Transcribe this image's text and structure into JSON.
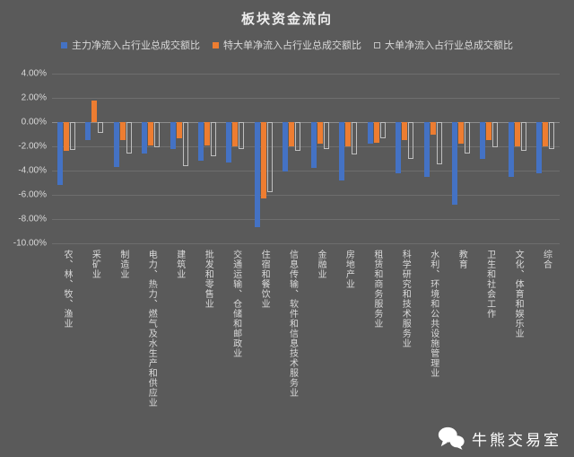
{
  "title": "板块资金流向",
  "watermark": {
    "label": "牛熊交易室",
    "icon": "wechat-icon"
  },
  "colors": {
    "background": "#5A5A5A",
    "text": "#D9D9D9",
    "title": "#ECECEC",
    "gridline": "#6E6E6E",
    "zero_line": "#8C8C8C",
    "series": [
      "#4472C4",
      "#ED7D31",
      "#BFBFBF"
    ]
  },
  "chart_data": {
    "type": "bar",
    "title": "板块资金流向",
    "legend_position": "top",
    "grid": true,
    "ylabel": "",
    "xlabel": "",
    "ylim": [
      -10,
      4
    ],
    "ytick_step": 2,
    "ytick_labels": [
      "4.00%",
      "2.00%",
      "0.00%",
      "-2.00%",
      "-4.00%",
      "-6.00%",
      "-8.00%",
      "-10.00%"
    ],
    "categories": [
      "农、林、牧、渔业",
      "采矿业",
      "制造业",
      "电力、热力、燃气及水生产和供应业",
      "建筑业",
      "批发和零售业",
      "交通运输、仓储和邮政业",
      "住宿和餐饮业",
      "信息传输、软件和信息技术服务业",
      "金融业",
      "房地产业",
      "租赁和商务服务业",
      "科学研究和技术服务业",
      "水利、环境和公共设施管理业",
      "教育",
      "卫生和社会工作",
      "文化、体育和娱乐业",
      "综合"
    ],
    "series": [
      {
        "name": "主力净流入占行业总成交额比",
        "color": "#4472C4",
        "fill": "solid",
        "values": [
          -5.2,
          -1.5,
          -3.7,
          -2.6,
          -2.2,
          -3.2,
          -3.3,
          -8.7,
          -4.1,
          -3.8,
          -4.8,
          -1.8,
          -4.2,
          -4.5,
          -6.8,
          -3.0,
          -4.5,
          -4.2
        ]
      },
      {
        "name": "特大单净流入占行业总成交额比",
        "color": "#ED7D31",
        "fill": "solid",
        "values": [
          -2.4,
          1.8,
          -1.5,
          -1.9,
          -1.3,
          -1.9,
          -2.0,
          -6.3,
          -2.0,
          -1.8,
          -2.0,
          -1.7,
          -1.5,
          -1.0,
          -1.8,
          -1.5,
          -2.0,
          -2.0
        ]
      },
      {
        "name": "大单净流入占行业总成交额比",
        "color": "#BFBFBF",
        "fill": "outline",
        "values": [
          -2.3,
          -0.9,
          -2.6,
          -2.1,
          -3.6,
          -2.8,
          -2.2,
          -5.8,
          -2.4,
          -2.2,
          -2.7,
          -1.3,
          -3.0,
          -3.5,
          -2.6,
          -2.1,
          -2.4,
          -2.2
        ]
      }
    ]
  }
}
